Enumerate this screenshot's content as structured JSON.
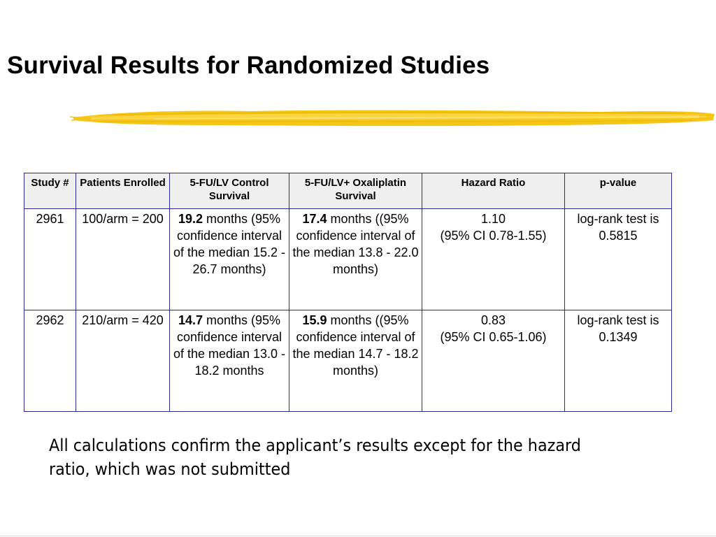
{
  "slide": {
    "title": "Survival Results for Randomized Studies",
    "accent_color": "#f5c518",
    "table": {
      "headers": [
        "Study #",
        "Patients Enrolled",
        "5-FU/LV Control Survival",
        "5-FU/LV+ Oxaliplatin Survival",
        "Hazard Ratio",
        "p-value"
      ],
      "rows": [
        {
          "study": "2961",
          "patients": "100/arm = 200",
          "control_value": "19.2",
          "control_text": " months (95% confidence interval of the median 15.2 - 26.7 months)",
          "oxali_value": "17.4",
          "oxali_text": " months ((95% confidence interval of the median 13.8 - 22.0 months)",
          "hazard_ratio": "1.10",
          "hazard_ci": "(95% CI 0.78-1.55)",
          "p_value": "log-rank test is 0.5815"
        },
        {
          "study": "2962",
          "patients": "210/arm = 420",
          "control_value": "14.7",
          "control_text": " months (95% confidence interval of the median 13.0 - 18.2 months",
          "oxali_value": "15.9",
          "oxali_text": " months ((95% confidence interval of the median 14.7 - 18.2 months)",
          "hazard_ratio": "0.83",
          "hazard_ci": "(95% CI 0.65-1.06)",
          "p_value": "log-rank test is 0.1349"
        }
      ]
    },
    "summary": "All calculations confirm the applicant’s results except for the hazard ratio, which was not submitted"
  }
}
